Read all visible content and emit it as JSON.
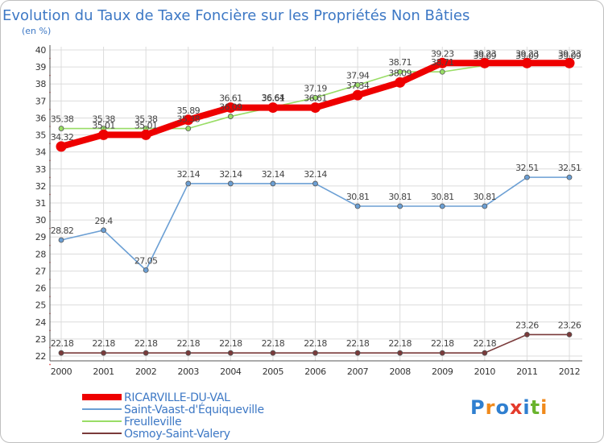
{
  "chart_data": {
    "type": "line",
    "title": "Evolution du Taux de Taxe Foncière sur les Propriétés Non Bâties",
    "ylabel": "(en %)",
    "xlabel": "",
    "categories": [
      "2000",
      "2001",
      "2002",
      "2003",
      "2004",
      "2005",
      "2006",
      "2007",
      "2008",
      "2009",
      "2010",
      "2011",
      "2012"
    ],
    "ylim": [
      22,
      40
    ],
    "yticks": [
      "22",
      "23",
      "24",
      "25",
      "26",
      "27",
      "28",
      "29",
      "30",
      "31",
      "32",
      "33",
      "34",
      "35",
      "36",
      "37",
      "38",
      "39",
      "40"
    ],
    "grid": true,
    "legend_position": "bottom-left",
    "series": [
      {
        "name": "RICARVILLE-DU-VAL",
        "color": "#ee0000",
        "values": [
          34.32,
          35.01,
          35.01,
          35.89,
          36.61,
          36.61,
          36.61,
          37.34,
          38.09,
          39.23,
          39.23,
          39.23,
          39.23
        ],
        "labels": [
          "34.32",
          "35.01",
          "35.01",
          "35.89",
          "36.61",
          "36.61",
          "36.61",
          "37.34",
          "38.09",
          "39.23",
          "39.23",
          "39.23",
          "39.23"
        ]
      },
      {
        "name": "Saint-Vaast-d'Équiqueville",
        "color": "#6b9fd4",
        "values": [
          28.82,
          29.4,
          27.05,
          32.14,
          32.14,
          32.14,
          32.14,
          30.81,
          30.81,
          30.81,
          30.81,
          32.51,
          32.51
        ],
        "labels": [
          "28.82",
          "29.4",
          "27.05",
          "32.14",
          "32.14",
          "32.14",
          "32.14",
          "30.81",
          "30.81",
          "30.81",
          "30.81",
          "32.51",
          "32.51"
        ]
      },
      {
        "name": "Freulleville",
        "color": "#99dd66",
        "values": [
          35.38,
          35.38,
          35.38,
          35.38,
          36.09,
          36.64,
          37.19,
          37.94,
          38.71,
          38.71,
          39.09,
          39.09,
          39.09
        ],
        "labels": [
          "35.38",
          "35.38",
          "35.38",
          "35.38",
          "36.09",
          "36.64",
          "37.19",
          "37.94",
          "38.71",
          "38.71",
          "39.09",
          "39.09",
          "39.09"
        ]
      },
      {
        "name": "Osmoy-Saint-Valery",
        "color": "#7a3a3a",
        "values": [
          22.18,
          22.18,
          22.18,
          22.18,
          22.18,
          22.18,
          22.18,
          22.18,
          22.18,
          22.18,
          22.18,
          23.26,
          23.26
        ],
        "labels": [
          "22.18",
          "22.18",
          "22.18",
          "22.18",
          "22.18",
          "22.18",
          "22.18",
          "22.18",
          "22.18",
          "22.18",
          "22.18",
          "23.26",
          "23.26"
        ]
      }
    ]
  },
  "logo": {
    "letters": [
      "P",
      "r",
      "o",
      "x",
      "i",
      "t",
      "i"
    ],
    "colors": [
      "#2f7fd0",
      "#f08a1c",
      "#2f7fd0",
      "#e43b2c",
      "#2f7fd0",
      "#6ab42d",
      "#f08a1c"
    ]
  }
}
